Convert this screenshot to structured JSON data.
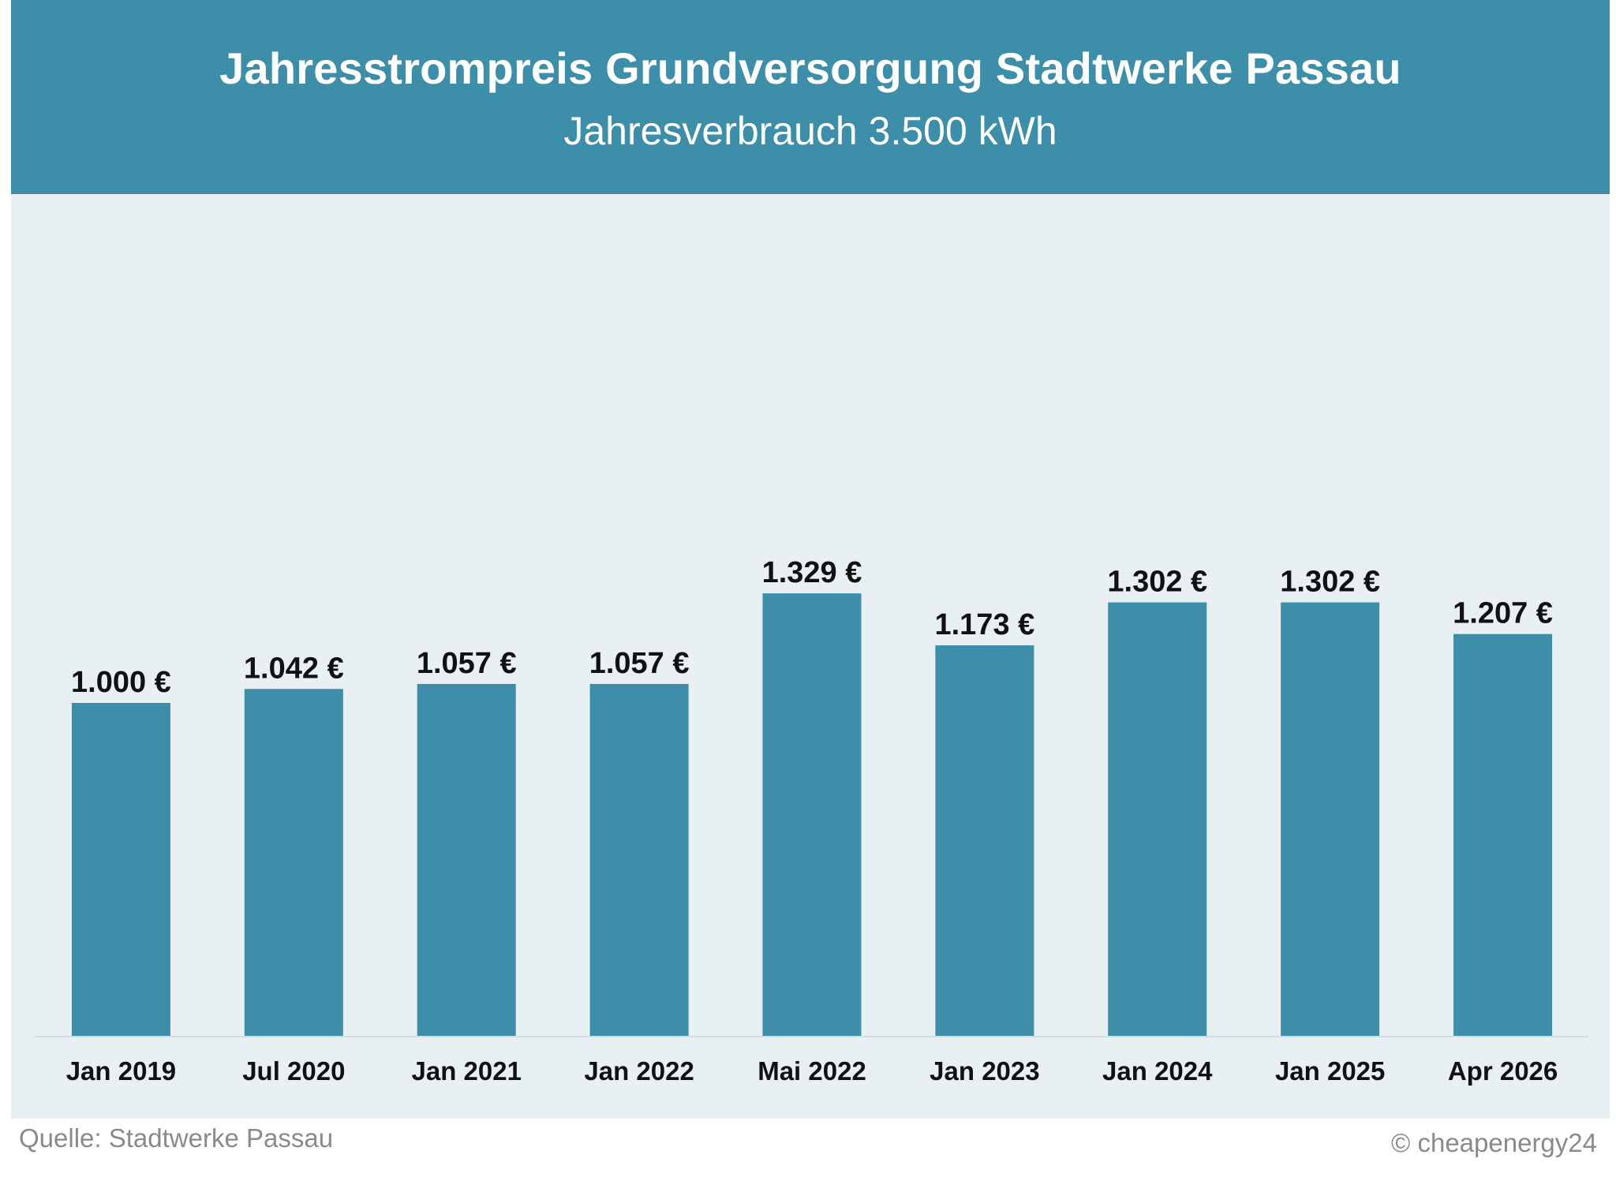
{
  "header": {
    "title": "Jahresstrompreis Grundversorgung Stadtwerke Passau",
    "subtitle": "Jahresverbrauch 3.500 kWh"
  },
  "footer": {
    "source": "Quelle: Stadtwerke Passau",
    "copyright": "© cheapenergy24"
  },
  "colors": {
    "header_bg": "#3d8ea8",
    "bar": "#3d8ea8",
    "plot_bg": "#e8f0f4",
    "label_text": "#111111",
    "footer_text": "#8a8a8a"
  },
  "chart_data": {
    "type": "bar",
    "title": "Jahresstrompreis Grundversorgung Stadtwerke Passau",
    "subtitle": "Jahresverbrauch 3.500 kWh",
    "categories": [
      "Jan 2019",
      "Jul 2020",
      "Jan 2021",
      "Jan 2022",
      "Mai 2022",
      "Jan 2023",
      "Jan 2024",
      "Jan 2025",
      "Apr 2026"
    ],
    "values": [
      1000,
      1042,
      1057,
      1057,
      1329,
      1173,
      1302,
      1302,
      1207
    ],
    "value_labels": [
      "1.000 €",
      "1.042 €",
      "1.057 €",
      "1.057 €",
      "1.329 €",
      "1.173 €",
      "1.302 €",
      "1.302 €",
      "1.207 €"
    ],
    "xlabel": "",
    "ylabel": "",
    "ylim": [
      0,
      2500
    ],
    "grid": false,
    "legend": "none"
  }
}
